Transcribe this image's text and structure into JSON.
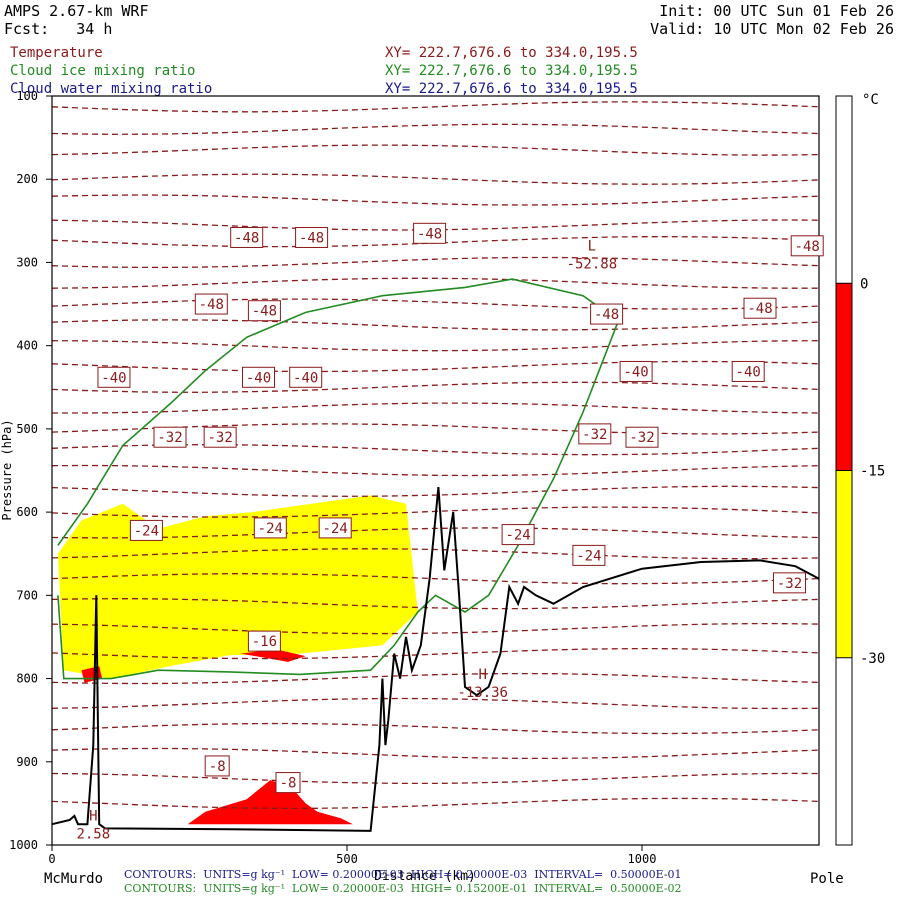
{
  "header": {
    "model": "AMPS 2.67-km WRF",
    "forecast": "Fcst:   34 h",
    "init": "Init: 00 UTC Sun 01 Feb 26",
    "valid": "Valid: 10 UTC Mon 02 Feb 26"
  },
  "legend": [
    {
      "name": "Temperature",
      "xy": "XY= 222.7,676.6 to 334.0,195.5",
      "color": "#8b1a1a"
    },
    {
      "name": "Cloud ice mixing ratio",
      "xy": "XY= 222.7,676.6 to 334.0,195.5",
      "color": "#228b22"
    },
    {
      "name": "Cloud water mixing ratio",
      "xy": "XY= 222.7,676.6 to 334.0,195.5",
      "color": "#1a1a8b"
    }
  ],
  "footer": {
    "line1": "CONTOURS:  UNITS=g kg⁻¹  LOW= 0.20000E-03  HIGH= 0.20000E-03  INTERVAL=  0.50000E-01",
    "line2": "CONTOURS:  UNITS=g kg⁻¹  LOW= 0.20000E-03  HIGH= 0.15200E-01  INTERVAL=  0.50000E-02"
  },
  "chart_data": {
    "type": "contour",
    "title": "",
    "xlabel": "Distance (km)",
    "ylabel": "Pressure (hPa)",
    "x_endpoints": [
      "McMurdo",
      "Pole"
    ],
    "xlim": [
      0,
      1300
    ],
    "ylim": [
      1000,
      100
    ],
    "xticks": [
      0,
      500,
      1000
    ],
    "yticks": [
      100,
      200,
      300,
      400,
      500,
      600,
      700,
      800,
      900,
      1000
    ],
    "colorbar": {
      "unit": "°C",
      "bands": [
        {
          "from": -30,
          "to": -15,
          "color": "#ffff00"
        },
        {
          "from": -15,
          "to": 0,
          "color": "#ff0000"
        }
      ],
      "labels": [
        "0",
        "-15",
        "-30"
      ]
    },
    "temperature_contour_labels": [
      {
        "x": 330,
        "p": 270,
        "text": "-48"
      },
      {
        "x": 440,
        "p": 270,
        "text": "-48"
      },
      {
        "x": 640,
        "p": 265,
        "text": "-48"
      },
      {
        "x": 1280,
        "p": 280,
        "text": "-48"
      },
      {
        "x": 270,
        "p": 350,
        "text": "-48"
      },
      {
        "x": 360,
        "p": 358,
        "text": "-48"
      },
      {
        "x": 940,
        "p": 362,
        "text": "-48"
      },
      {
        "x": 1200,
        "p": 355,
        "text": "-48"
      },
      {
        "x": 105,
        "p": 438,
        "text": "-40"
      },
      {
        "x": 350,
        "p": 438,
        "text": "-40"
      },
      {
        "x": 430,
        "p": 438,
        "text": "-40"
      },
      {
        "x": 990,
        "p": 431,
        "text": "-40"
      },
      {
        "x": 1180,
        "p": 431,
        "text": "-40"
      },
      {
        "x": 200,
        "p": 510,
        "text": "-32"
      },
      {
        "x": 285,
        "p": 510,
        "text": "-32"
      },
      {
        "x": 920,
        "p": 506,
        "text": "-32"
      },
      {
        "x": 1000,
        "p": 510,
        "text": "-32"
      },
      {
        "x": 1250,
        "p": 685,
        "text": "-32"
      },
      {
        "x": 160,
        "p": 622,
        "text": "-24"
      },
      {
        "x": 370,
        "p": 619,
        "text": "-24"
      },
      {
        "x": 480,
        "p": 619,
        "text": "-24"
      },
      {
        "x": 790,
        "p": 627,
        "text": "-24"
      },
      {
        "x": 910,
        "p": 652,
        "text": "-24"
      },
      {
        "x": 360,
        "p": 755,
        "text": "-16"
      },
      {
        "x": 280,
        "p": 905,
        "text": "-8"
      },
      {
        "x": 400,
        "p": 925,
        "text": "-8"
      }
    ],
    "extrema": [
      {
        "kind": "L",
        "x": 915,
        "p": 295,
        "value": "-52.88"
      },
      {
        "kind": "H",
        "x": 730,
        "p": 810,
        "value": "-13.36"
      },
      {
        "kind": "H",
        "x": 70,
        "p": 980,
        "value": "2.58"
      }
    ],
    "terrain": [
      [
        0,
        975
      ],
      [
        30,
        970
      ],
      [
        38,
        965
      ],
      [
        44,
        975
      ],
      [
        60,
        975
      ],
      [
        70,
        880
      ],
      [
        75,
        700
      ],
      [
        80,
        975
      ],
      [
        90,
        980
      ],
      [
        300,
        981
      ],
      [
        540,
        983
      ],
      [
        555,
        880
      ],
      [
        560,
        800
      ],
      [
        565,
        880
      ],
      [
        570,
        850
      ],
      [
        580,
        770
      ],
      [
        590,
        800
      ],
      [
        600,
        750
      ],
      [
        610,
        790
      ],
      [
        625,
        760
      ],
      [
        640,
        680
      ],
      [
        655,
        570
      ],
      [
        665,
        670
      ],
      [
        680,
        600
      ],
      [
        690,
        700
      ],
      [
        700,
        810
      ],
      [
        720,
        820
      ],
      [
        740,
        810
      ],
      [
        760,
        770
      ],
      [
        775,
        690
      ],
      [
        790,
        710
      ],
      [
        800,
        690
      ],
      [
        820,
        700
      ],
      [
        850,
        710
      ],
      [
        900,
        690
      ],
      [
        1000,
        668
      ],
      [
        1100,
        660
      ],
      [
        1200,
        658
      ],
      [
        1260,
        665
      ],
      [
        1300,
        680
      ]
    ],
    "red_fill_regions": [
      [
        [
          230,
          975
        ],
        [
          260,
          960
        ],
        [
          330,
          945
        ],
        [
          370,
          922
        ],
        [
          405,
          930
        ],
        [
          430,
          950
        ],
        [
          450,
          960
        ],
        [
          490,
          968
        ],
        [
          510,
          975
        ]
      ],
      [
        [
          320,
          770
        ],
        [
          400,
          780
        ],
        [
          430,
          773
        ],
        [
          380,
          765
        ]
      ],
      [
        [
          50,
          790
        ],
        [
          80,
          785
        ],
        [
          85,
          800
        ],
        [
          55,
          805
        ]
      ]
    ],
    "yellow_fill_region": [
      [
        10,
        650
      ],
      [
        50,
        610
      ],
      [
        120,
        590
      ],
      [
        180,
        620
      ],
      [
        260,
        605
      ],
      [
        340,
        600
      ],
      [
        440,
        590
      ],
      [
        540,
        580
      ],
      [
        600,
        590
      ],
      [
        620,
        720
      ],
      [
        560,
        760
      ],
      [
        420,
        770
      ],
      [
        300,
        772
      ],
      [
        200,
        785
      ],
      [
        100,
        800
      ],
      [
        20,
        790
      ]
    ]
  }
}
